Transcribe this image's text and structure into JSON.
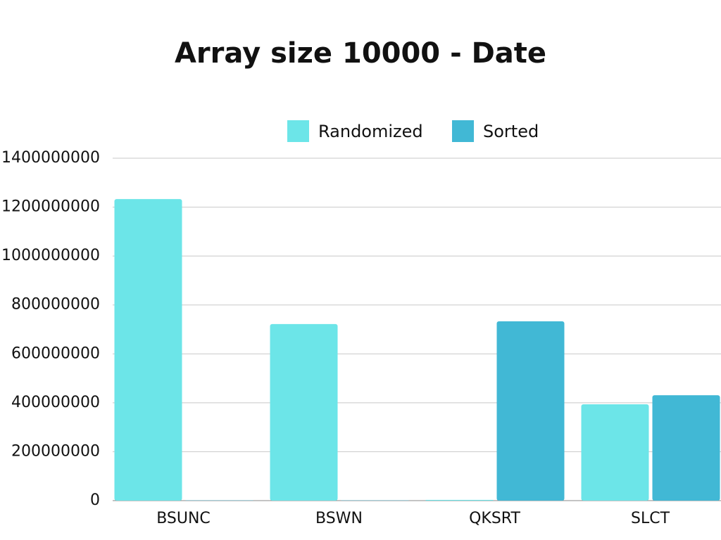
{
  "chart_data": {
    "type": "bar",
    "title": "Array size 10000 - Date",
    "categories": [
      "BSUNC",
      "BSWN",
      "QKSRT",
      "SLCT"
    ],
    "series": [
      {
        "name": "Randomized",
        "color": "#6ce5e8",
        "values": [
          1233000000,
          722000000,
          3000000,
          394000000
        ]
      },
      {
        "name": "Sorted",
        "color": "#41b8d5",
        "values": [
          1000000,
          1000000,
          733000000,
          431000000
        ]
      }
    ],
    "ylim": [
      0,
      1400000000
    ],
    "yticks": [
      0,
      200000000,
      400000000,
      600000000,
      800000000,
      1000000000,
      1200000000,
      1400000000
    ],
    "grid": true,
    "legend": "top"
  }
}
